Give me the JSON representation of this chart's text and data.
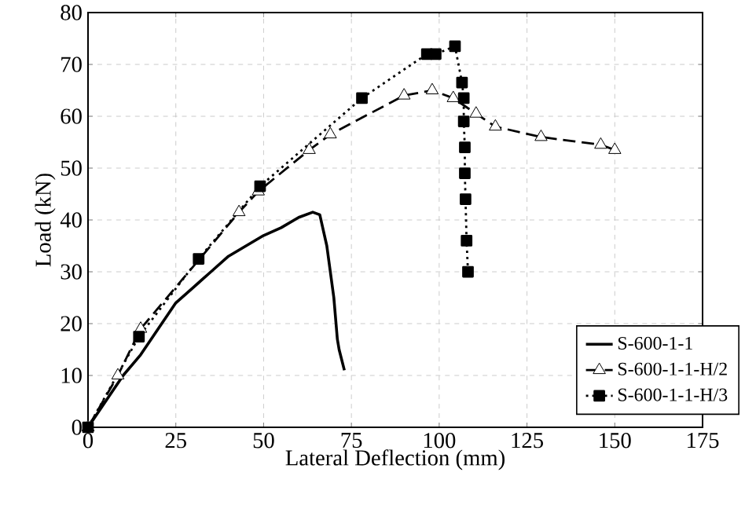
{
  "chart_data": {
    "type": "line",
    "xlabel": "Lateral Deflection (mm)",
    "ylabel": "Load (kN)",
    "xlim": [
      0,
      175
    ],
    "xticks": [
      0,
      25,
      50,
      75,
      100,
      125,
      150,
      175
    ],
    "ylim": [
      0,
      80
    ],
    "yticks": [
      0,
      10,
      20,
      30,
      40,
      50,
      60,
      70,
      80
    ],
    "grid": true,
    "legend": "bottom right",
    "series": [
      {
        "name": "S-600-1-1",
        "color": "#000000",
        "line_style": "solid",
        "marker": "none",
        "x": [
          0,
          5,
          10,
          15,
          20,
          25,
          30,
          35,
          40,
          45,
          50,
          55,
          60,
          64,
          66,
          68,
          70,
          71,
          71.5,
          73
        ],
        "values": [
          0,
          5,
          10,
          14,
          19,
          24,
          27,
          30,
          33,
          35,
          37,
          38.5,
          40.5,
          41.5,
          41,
          35,
          25,
          17,
          15,
          11
        ]
      },
      {
        "name": "S-600-1-1-H/2",
        "color": "#000000",
        "line_style": "dashed",
        "marker": "triangle",
        "x": [
          0,
          8.5,
          15,
          43,
          48.5,
          63,
          69,
          90,
          98,
          104,
          110.5,
          116,
          129,
          146,
          150
        ],
        "values": [
          0,
          10,
          19,
          41.5,
          45.5,
          53.5,
          56.5,
          64,
          65,
          63.5,
          60.5,
          58,
          56,
          54.5,
          53.5
        ]
      },
      {
        "name": "S-600-1-1-H/3",
        "color": "#000000",
        "line_style": "dotted",
        "marker": "square",
        "x": [
          0,
          14.5,
          31.5,
          49,
          78,
          96.5,
          99,
          104.5,
          106.5,
          107,
          107,
          107.3,
          107.3,
          107.5,
          107.8,
          108.2
        ],
        "values": [
          0,
          17.5,
          32.5,
          46.5,
          63.5,
          72,
          72,
          73.5,
          66.5,
          63.5,
          59,
          54,
          49,
          44,
          36,
          30
        ]
      }
    ]
  }
}
